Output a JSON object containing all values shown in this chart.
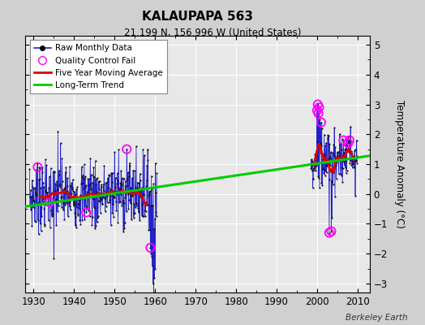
{
  "title": "KALAUPAPA 563",
  "subtitle": "21.199 N, 156.996 W (United States)",
  "ylabel": "Temperature Anomaly (°C)",
  "credit": "Berkeley Earth",
  "xlim": [
    1928,
    2013
  ],
  "ylim": [
    -3.3,
    5.3
  ],
  "yticks": [
    -3,
    -2,
    -1,
    0,
    1,
    2,
    3,
    4,
    5
  ],
  "xticks": [
    1930,
    1940,
    1950,
    1960,
    1970,
    1980,
    1990,
    2000,
    2010
  ],
  "bg_color": "#e8e8e8",
  "outer_bg": "#d0d0d0",
  "grid_color": "#c8c8c8",
  "raw_color": "#2222cc",
  "dot_color": "#111111",
  "ma_color": "#dd0000",
  "trend_color": "#00cc00",
  "qc_color": "magenta",
  "trend_line": {
    "x1": 1928,
    "y1": -0.42,
    "x2": 2013,
    "y2": 1.28
  },
  "legend_entries": [
    "Raw Monthly Data",
    "Quality Control Fail",
    "Five Year Moving Average",
    "Long-Term Trend"
  ]
}
